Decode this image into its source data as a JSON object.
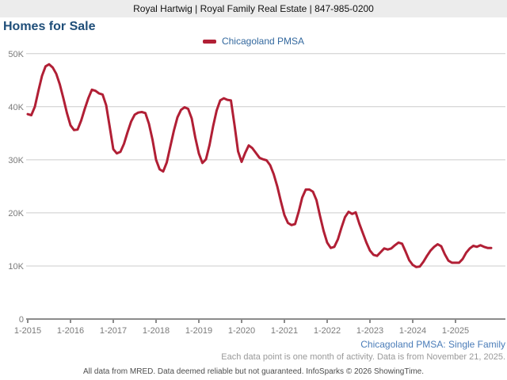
{
  "header": {
    "contact_line": "Royal Hartwig | Royal Family Real Estate | 847-985-0200"
  },
  "title": "Homes for Sale",
  "legend": {
    "series_label": "Chicagoland PMSA"
  },
  "footer": {
    "series_note": "Chicagoland PMSA: Single Family",
    "data_note": "Each data point is one month of activity. Data is from November 21, 2025.",
    "disclaimer": "All data from MRED. Data deemed reliable but not guaranteed. InfoSparks © 2026 ShowingTime."
  },
  "colors": {
    "line": "#b11f35",
    "title_text": "#1f4e79",
    "legend_text": "#33689e",
    "series_note_text": "#4a7cb8",
    "grid": "#cccccc",
    "axis": "#8c8c8c",
    "tick_label": "#7a7a7a",
    "note_text": "#999999",
    "header_bg": "#ececec"
  },
  "chart_data": {
    "type": "line",
    "title": "Homes for Sale",
    "series": [
      {
        "name": "Chicagoland PMSA",
        "x_start_month": "2015-01",
        "x_end_month": "2025-11",
        "values_thousands": [
          38.6,
          38.4,
          40.0,
          43.0,
          45.8,
          47.6,
          48.0,
          47.4,
          46.2,
          44.2,
          41.6,
          38.8,
          36.5,
          35.6,
          35.7,
          37.4,
          39.6,
          41.6,
          43.2,
          43.0,
          42.5,
          42.3,
          40.3,
          36.2,
          32.0,
          31.2,
          31.5,
          33.0,
          35.2,
          37.2,
          38.5,
          38.9,
          39.0,
          38.8,
          36.8,
          33.8,
          30.0,
          28.2,
          27.8,
          29.5,
          32.5,
          35.5,
          38.0,
          39.4,
          39.9,
          39.6,
          37.8,
          34.2,
          31.2,
          29.4,
          30.1,
          32.8,
          36.3,
          39.3,
          41.2,
          41.6,
          41.3,
          41.2,
          36.6,
          31.6,
          29.6,
          31.3,
          32.7,
          32.2,
          31.3,
          30.4,
          30.1,
          29.9,
          29.0,
          27.3,
          25.0,
          22.2,
          19.6,
          18.1,
          17.7,
          17.9,
          20.2,
          22.9,
          24.4,
          24.4,
          24.0,
          22.4,
          19.4,
          16.6,
          14.4,
          13.4,
          13.6,
          15.0,
          17.2,
          19.2,
          20.2,
          19.8,
          20.1,
          18.0,
          16.2,
          14.4,
          12.9,
          12.1,
          11.9,
          12.6,
          13.3,
          13.1,
          13.3,
          13.9,
          14.4,
          14.2,
          12.7,
          11.1,
          10.2,
          9.8,
          9.9,
          10.8,
          11.9,
          12.9,
          13.6,
          14.1,
          13.7,
          12.2,
          11.0,
          10.6,
          10.6,
          10.6,
          11.3,
          12.5,
          13.3,
          13.8,
          13.6,
          13.9,
          13.6,
          13.4,
          13.4
        ]
      }
    ],
    "x_tick_labels": [
      "1-2015",
      "1-2016",
      "1-2017",
      "1-2018",
      "1-2019",
      "1-2020",
      "1-2021",
      "1-2022",
      "1-2023",
      "1-2024",
      "1-2025"
    ],
    "y_tick_labels": [
      "0",
      "10K",
      "20K",
      "30K",
      "40K",
      "50K"
    ],
    "ylim_thousands": [
      0,
      50
    ],
    "grid": "horizontal-only",
    "legend_position": "top-center"
  }
}
